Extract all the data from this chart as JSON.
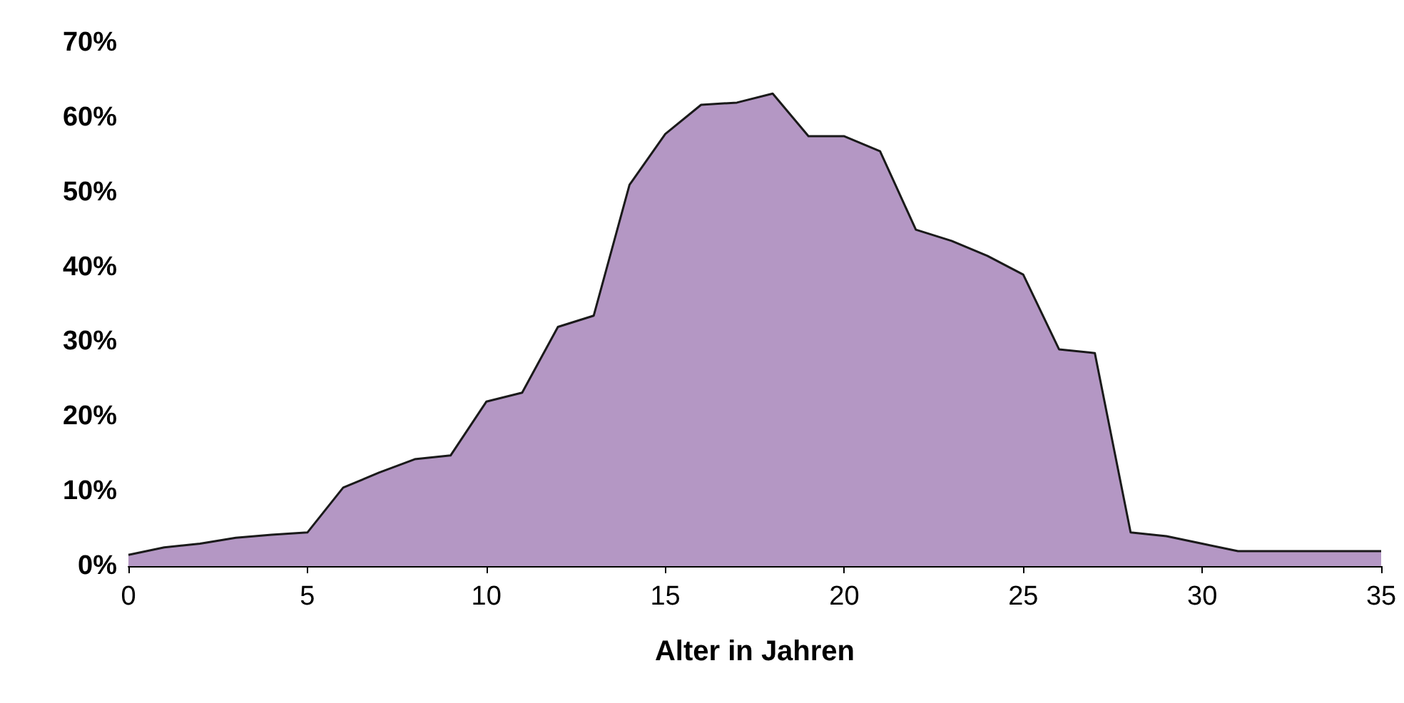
{
  "chart_data": {
    "type": "area",
    "xlabel": "Alter in Jahren",
    "x": [
      0,
      1,
      2,
      3,
      4,
      5,
      6,
      7,
      8,
      9,
      10,
      11,
      12,
      13,
      14,
      15,
      16,
      17,
      18,
      19,
      20,
      21,
      22,
      23,
      24,
      25,
      26,
      27,
      28,
      29,
      30,
      31,
      32,
      33,
      34,
      35
    ],
    "series": [
      {
        "color": "#b497c4",
        "values": [
          1.5,
          2.5,
          3,
          3.8,
          4.2,
          4.5,
          10.5,
          12.5,
          14.3,
          14.8,
          22,
          23.2,
          32,
          33.5,
          51,
          57.8,
          61.7,
          62,
          63.2,
          57.5,
          57.5,
          55.5,
          45,
          43.5,
          41.5,
          39,
          29,
          28.5,
          4.5,
          4,
          3,
          2,
          2,
          2,
          2,
          2
        ]
      }
    ],
    "xlim": [
      0,
      35
    ],
    "xticks": [
      0,
      5,
      10,
      15,
      20,
      25,
      30,
      35
    ],
    "ylim": [
      0,
      70
    ],
    "yticks": [
      {
        "value": 0,
        "label": "0%"
      },
      {
        "value": 10,
        "label": "10%"
      },
      {
        "value": 20,
        "label": "20%"
      },
      {
        "value": 30,
        "label": "30%"
      },
      {
        "value": 40,
        "label": "40%"
      },
      {
        "value": 50,
        "label": "50%"
      },
      {
        "value": 60,
        "label": "60%"
      },
      {
        "value": 70,
        "label": "70%"
      }
    ],
    "grid": false,
    "marker": "none",
    "line_style": "solid"
  }
}
